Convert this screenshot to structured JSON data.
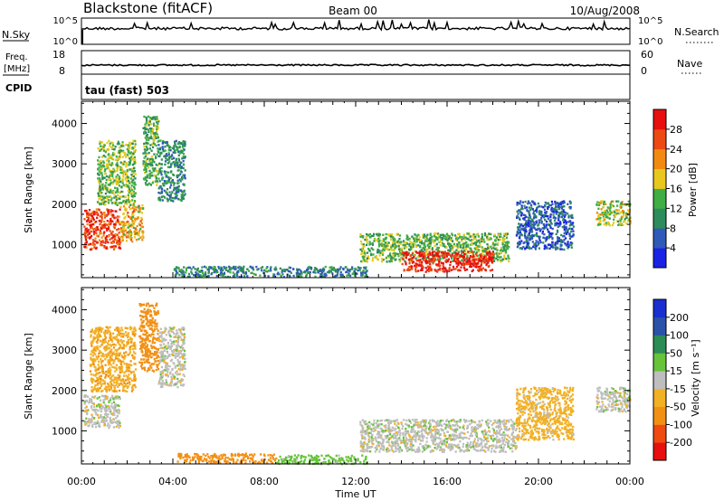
{
  "header": {
    "station": "Blackstone (fitACF)",
    "beam": "Beam 00",
    "date": "10/Aug/2008"
  },
  "nsky_panel": {
    "left_label": "N.Sky",
    "left_ticks": [
      "10^5",
      "10^0"
    ],
    "right_label": "N.Search",
    "right_ticks": [
      "10^5",
      "10^0"
    ]
  },
  "freq_panel": {
    "left_label_1": "Freq.",
    "left_label_2": "[MHz]",
    "left_ticks": [
      "18",
      "8"
    ],
    "right_label": "Nave",
    "right_ticks": [
      "60",
      "0"
    ]
  },
  "cpid": {
    "label": "CPID",
    "mode": "tau (fast) 503"
  },
  "colors": {
    "power_scale": [
      "#1a22e6",
      "#2f5ab8",
      "#2e8b5a",
      "#3fae45",
      "#e8c81e",
      "#f28a12",
      "#ec4a12",
      "#e80f0f"
    ],
    "velocity_scale": [
      "#e80f0f",
      "#ee4a12",
      "#f29014",
      "#f2b024",
      "#bebebe",
      "#66c33a",
      "#2c8c55",
      "#2a53a8",
      "#1b2fd0"
    ]
  },
  "chart_data": [
    {
      "type": "heatmap",
      "quantity": "power",
      "xlabel": "",
      "ylabel": "Slant Range [km]",
      "x_range": [
        "00:00",
        "24:00"
      ],
      "ylim": [
        180,
        4550
      ],
      "y_ticks": [
        "1000",
        "2000",
        "3000",
        "4000"
      ],
      "colorbar": {
        "label": "Power [dB]",
        "range": [
          0,
          32
        ],
        "ticks": [
          "4",
          "8",
          "12",
          "16",
          "20",
          "24",
          "28"
        ]
      },
      "regions": [
        {
          "start": "00:05",
          "end": "01:40",
          "range_km": [
            900,
            1900
          ],
          "level_db": 27
        },
        {
          "start": "01:40",
          "end": "02:40",
          "range_km": [
            1100,
            2000
          ],
          "level_db": 20
        },
        {
          "start": "00:40",
          "end": "02:20",
          "range_km": [
            2000,
            3600
          ],
          "level_db": 15
        },
        {
          "start": "02:40",
          "end": "03:20",
          "range_km": [
            2500,
            4200
          ],
          "level_db": 13
        },
        {
          "start": "03:20",
          "end": "04:30",
          "range_km": [
            2100,
            3600
          ],
          "level_db": 10
        },
        {
          "start": "04:00",
          "end": "12:30",
          "range_km": [
            220,
            480
          ],
          "level_db": 9
        },
        {
          "start": "12:10",
          "end": "18:40",
          "range_km": [
            600,
            1300
          ],
          "level_db": 14
        },
        {
          "start": "14:00",
          "end": "18:00",
          "range_km": [
            350,
            850
          ],
          "level_db": 29
        },
        {
          "start": "19:00",
          "end": "21:30",
          "range_km": [
            900,
            2100
          ],
          "level_db": 6
        },
        {
          "start": "22:30",
          "end": "24:00",
          "range_km": [
            1500,
            2100
          ],
          "level_db": 16
        }
      ]
    },
    {
      "type": "heatmap",
      "quantity": "velocity",
      "xlabel": "Time UT",
      "ylabel": "Slant Range [km]",
      "x_range": [
        "00:00",
        "24:00"
      ],
      "x_ticks": [
        "00:00",
        "04:00",
        "08:00",
        "12:00",
        "16:00",
        "20:00",
        "00:00"
      ],
      "ylim": [
        180,
        4550
      ],
      "y_ticks": [
        "1000",
        "2000",
        "3000",
        "4000"
      ],
      "colorbar": {
        "label": "Velocity [m s⁻¹]",
        "ticks": [
          "200",
          "100",
          "50",
          "15",
          "-15",
          "-50",
          "-100",
          "-200"
        ]
      },
      "regions": [
        {
          "start": "00:05",
          "end": "01:40",
          "range_km": [
            1100,
            1900
          ],
          "velocity": 0
        },
        {
          "start": "00:20",
          "end": "02:20",
          "range_km": [
            2000,
            3600
          ],
          "velocity": -40
        },
        {
          "start": "02:30",
          "end": "03:20",
          "range_km": [
            2500,
            4200
          ],
          "velocity": -70
        },
        {
          "start": "03:20",
          "end": "04:30",
          "range_km": [
            2100,
            3600
          ],
          "velocity": 0
        },
        {
          "start": "04:10",
          "end": "08:30",
          "range_km": [
            220,
            460
          ],
          "velocity": -70
        },
        {
          "start": "08:30",
          "end": "12:30",
          "range_km": [
            200,
            420
          ],
          "velocity": 30
        },
        {
          "start": "12:10",
          "end": "19:00",
          "range_km": [
            500,
            1300
          ],
          "velocity": 0
        },
        {
          "start": "19:00",
          "end": "21:30",
          "range_km": [
            800,
            2100
          ],
          "velocity": -30
        },
        {
          "start": "22:30",
          "end": "24:00",
          "range_km": [
            1500,
            2100
          ],
          "velocity": 0
        }
      ]
    }
  ]
}
